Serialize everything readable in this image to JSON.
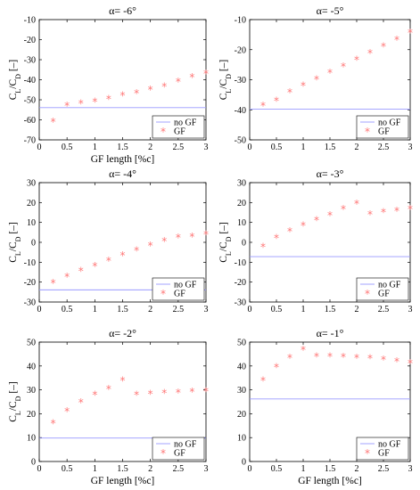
{
  "colors": {
    "no_gf": "#9999ff",
    "gf": "#ff7777",
    "axes": "#000000"
  },
  "chart_data": [
    {
      "type": "scatter",
      "title": "α= -6°",
      "xlabel": "GF length [%c]",
      "ylabel": "C_L/C_D [–]",
      "xlim": [
        0,
        3
      ],
      "ylim": [
        -70,
        -10
      ],
      "xticks": [
        "0",
        "0.5",
        "1",
        "1.5",
        "2",
        "2.5",
        "3"
      ],
      "yticks": [
        "-70",
        "-60",
        "-50",
        "-40",
        "-30",
        "-20",
        "-10"
      ],
      "legend": "bottom-right",
      "series": [
        {
          "name": "no GF",
          "type": "line",
          "x": [
            0,
            3
          ],
          "y": [
            -53.9,
            -53.9
          ]
        },
        {
          "name": "GF",
          "type": "scatter",
          "x": [
            0.25,
            0.5,
            0.75,
            1.0,
            1.25,
            1.5,
            1.75,
            2.0,
            2.25,
            2.5,
            2.75,
            3.0
          ],
          "y": [
            -60.9,
            -52.9,
            -51.8,
            -50.9,
            -49.6,
            -47.8,
            -46.6,
            -44.9,
            -43.3,
            -40.9,
            -38.7,
            -36.9
          ]
        }
      ]
    },
    {
      "type": "scatter",
      "title": "α= -5°",
      "xlabel": "",
      "ylabel": "C_L/C_D [–]",
      "xlim": [
        0,
        3
      ],
      "ylim": [
        -50,
        -10
      ],
      "xticks": [
        "0",
        "0.5",
        "1",
        "1.5",
        "2",
        "2.5",
        "3"
      ],
      "yticks": [
        "-50",
        "-40",
        "-30",
        "-20",
        "-10"
      ],
      "legend": "bottom-right",
      "series": [
        {
          "name": "no GF",
          "type": "line",
          "x": [
            0,
            3
          ],
          "y": [
            -39.8,
            -39.8
          ]
        },
        {
          "name": "GF",
          "type": "scatter",
          "x": [
            0.25,
            0.5,
            0.75,
            1.0,
            1.25,
            1.5,
            1.75,
            2.0,
            2.25,
            2.5,
            2.75,
            3.0
          ],
          "y": [
            -38.6,
            -36.9,
            -34.2,
            -31.9,
            -29.8,
            -27.7,
            -25.6,
            -23.3,
            -21.1,
            -18.9,
            -16.6,
            -14.3
          ]
        }
      ]
    },
    {
      "type": "scatter",
      "title": "α= -4°",
      "xlabel": "",
      "ylabel": "C_L/C_D [–]",
      "xlim": [
        0,
        3
      ],
      "ylim": [
        -30,
        30
      ],
      "xticks": [
        "0",
        "0.5",
        "1",
        "1.5",
        "2",
        "2.5",
        "3"
      ],
      "yticks": [
        "-30",
        "-20",
        "-10",
        "0",
        "10",
        "20",
        "30"
      ],
      "legend": "bottom-right",
      "series": [
        {
          "name": "no GF",
          "type": "line",
          "x": [
            0,
            3
          ],
          "y": [
            -23.9,
            -23.9
          ]
        },
        {
          "name": "GF",
          "type": "scatter",
          "x": [
            0.25,
            0.5,
            0.75,
            1.0,
            1.25,
            1.5,
            1.75,
            2.0,
            2.25,
            2.5,
            2.75,
            3.0
          ],
          "y": [
            -20.4,
            -17.2,
            -14.4,
            -11.8,
            -9.2,
            -6.6,
            -4.0,
            -1.6,
            0.6,
            2.4,
            3.0,
            4.0
          ]
        }
      ]
    },
    {
      "type": "scatter",
      "title": "α= -3°",
      "xlabel": "",
      "ylabel": "C_L/C_D [–]",
      "xlim": [
        0,
        3
      ],
      "ylim": [
        -30,
        30
      ],
      "xticks": [
        "0",
        "0.5",
        "1",
        "1.5",
        "2",
        "2.5",
        "3"
      ],
      "yticks": [
        "-30",
        "-20",
        "-10",
        "0",
        "10",
        "20",
        "30"
      ],
      "legend": "bottom-right",
      "series": [
        {
          "name": "no GF",
          "type": "line",
          "x": [
            0,
            3
          ],
          "y": [
            -7.2,
            -7.2
          ]
        },
        {
          "name": "GF",
          "type": "scatter",
          "x": [
            0.25,
            0.5,
            0.75,
            1.0,
            1.25,
            1.5,
            1.75,
            2.0,
            2.25,
            2.5,
            2.75,
            3.0
          ],
          "y": [
            -2.2,
            2.3,
            5.6,
            8.6,
            11.3,
            13.6,
            16.7,
            19.4,
            14.1,
            15.3,
            16.0,
            16.9
          ]
        }
      ]
    },
    {
      "type": "scatter",
      "title": "α= -2°",
      "xlabel": "GF length [%c]",
      "ylabel": "C_L/C_D [–]",
      "xlim": [
        0,
        3
      ],
      "ylim": [
        0,
        50
      ],
      "xticks": [
        "0",
        "0.5",
        "1",
        "1.5",
        "2",
        "2.5",
        "3"
      ],
      "yticks": [
        "0",
        "10",
        "20",
        "30",
        "40",
        "50"
      ],
      "legend": "bottom-right",
      "series": [
        {
          "name": "no GF",
          "type": "line",
          "x": [
            0,
            3
          ],
          "y": [
            9.8,
            9.8
          ]
        },
        {
          "name": "GF",
          "type": "scatter",
          "x": [
            0.25,
            0.5,
            0.75,
            1.0,
            1.25,
            1.5,
            1.75,
            2.0,
            2.25,
            2.5,
            2.75,
            3.0
          ],
          "y": [
            16.0,
            21.0,
            24.8,
            28.0,
            30.5,
            34.0,
            27.9,
            28.4,
            28.8,
            29.0,
            29.2,
            29.4
          ]
        }
      ]
    },
    {
      "type": "scatter",
      "title": "α= -1°",
      "xlabel": "GF length [%c]",
      "ylabel": "",
      "xlim": [
        0,
        3
      ],
      "ylim": [
        0,
        50
      ],
      "xticks": [
        "0",
        "0.5",
        "1",
        "1.5",
        "2",
        "2.5",
        "3"
      ],
      "yticks": [
        "0",
        "10",
        "20",
        "30",
        "40",
        "50"
      ],
      "legend": "bottom-right",
      "series": [
        {
          "name": "no GF",
          "type": "line",
          "x": [
            0,
            3
          ],
          "y": [
            26.2,
            26.2
          ]
        },
        {
          "name": "GF",
          "type": "scatter",
          "x": [
            0.25,
            0.5,
            0.75,
            1.0,
            1.25,
            1.5,
            1.75,
            2.0,
            2.25,
            2.5,
            2.75,
            3.0
          ],
          "y": [
            33.9,
            39.6,
            43.4,
            46.9,
            44.1,
            44.1,
            43.8,
            43.5,
            43.3,
            42.7,
            42.0,
            41.3
          ]
        }
      ]
    }
  ]
}
